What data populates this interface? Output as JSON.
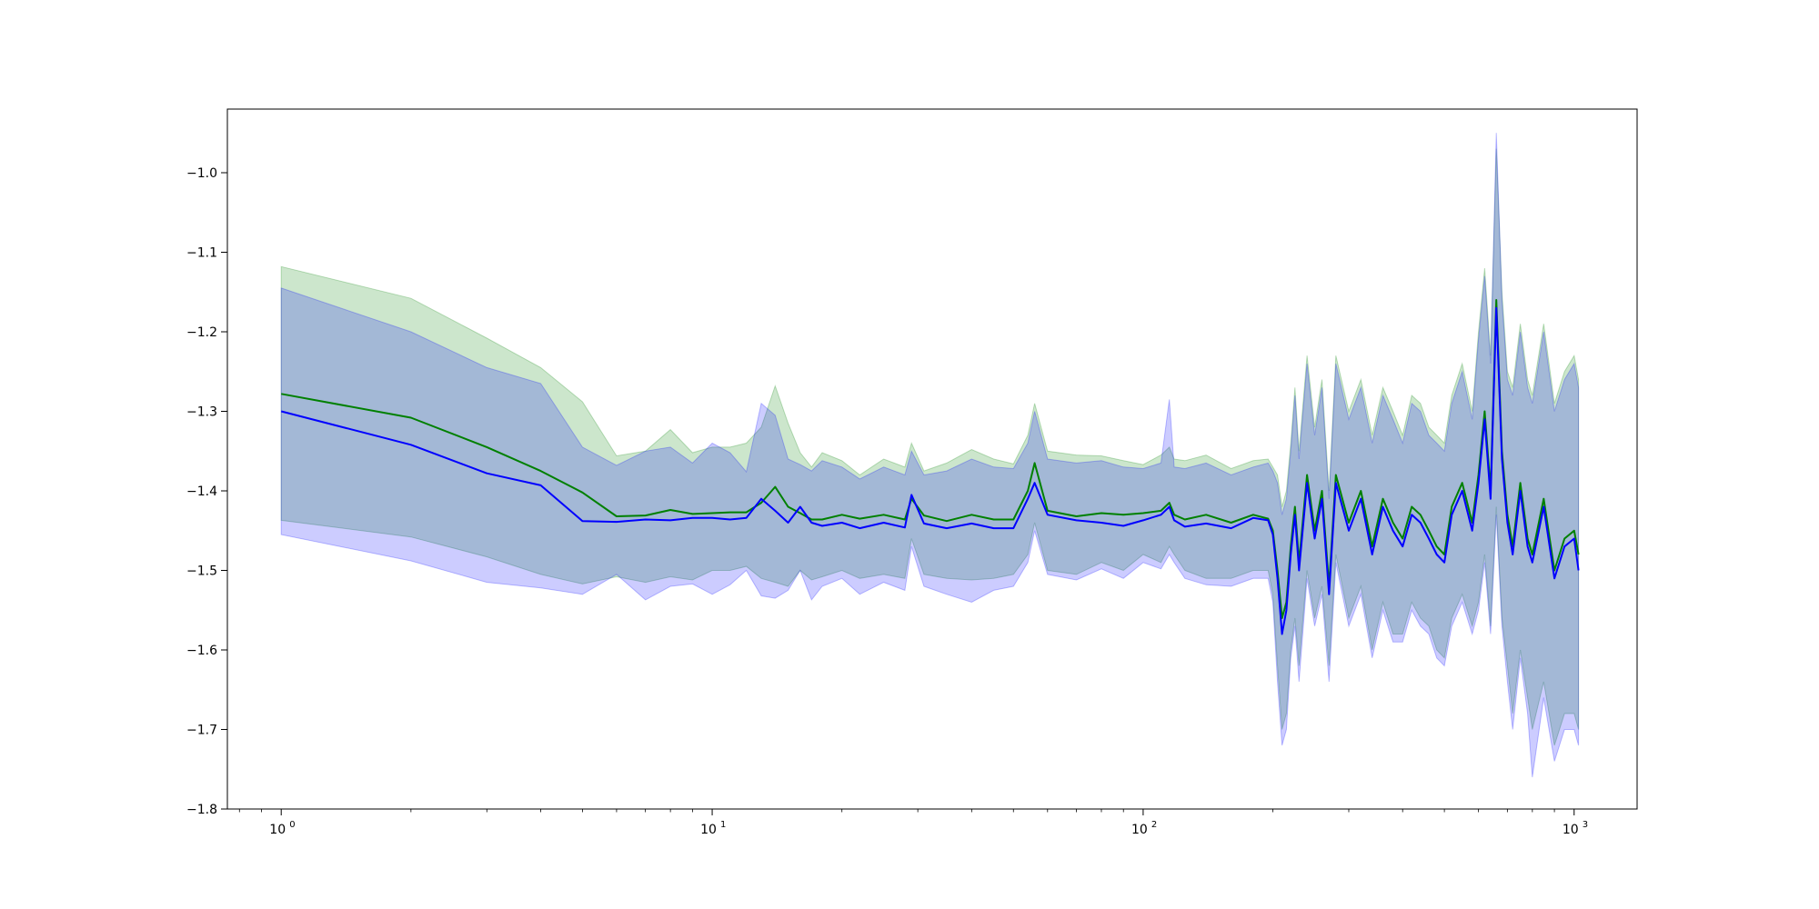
{
  "colors": {
    "green_line": "#008000",
    "blue_line": "#0000ff",
    "green_band": "#008000",
    "blue_band": "#0000ff",
    "axes": "#000000",
    "background": "#ffffff"
  },
  "chart_data": {
    "type": "line",
    "title": "",
    "xlabel": "",
    "ylabel": "",
    "xscale": "log",
    "xlim": [
      0.75,
      1400
    ],
    "ylim": [
      -1.8,
      -0.92
    ],
    "grid": false,
    "legend": null,
    "x_ticks": [
      1,
      10,
      100,
      1000
    ],
    "x_tick_labels": [
      {
        "base": "10",
        "exp": "0"
      },
      {
        "base": "10",
        "exp": "1"
      },
      {
        "base": "10",
        "exp": "2"
      },
      {
        "base": "10",
        "exp": "3"
      }
    ],
    "y_ticks": [
      -1.0,
      -1.1,
      -1.2,
      -1.3,
      -1.4,
      -1.5,
      -1.6,
      -1.7,
      -1.8
    ],
    "y_tick_labels": [
      "−1.0",
      "−1.1",
      "−1.2",
      "−1.3",
      "−1.4",
      "−1.5",
      "−1.6",
      "−1.7",
      "−1.8"
    ],
    "x": [
      1,
      2,
      3,
      4,
      5,
      6,
      7,
      8,
      9,
      10,
      11,
      12,
      13,
      14,
      15,
      16,
      17,
      18,
      20,
      22,
      25,
      28,
      29,
      31,
      35,
      40,
      45,
      50,
      54,
      56,
      60,
      70,
      80,
      90,
      100,
      110,
      115,
      118,
      125,
      140,
      160,
      180,
      195,
      200,
      205,
      210,
      215,
      220,
      225,
      230,
      240,
      250,
      260,
      270,
      280,
      300,
      320,
      340,
      360,
      380,
      400,
      420,
      440,
      460,
      480,
      500,
      520,
      550,
      580,
      600,
      620,
      640,
      660,
      680,
      700,
      720,
      750,
      780,
      800,
      850,
      900,
      950,
      1000,
      1024
    ],
    "series": [
      {
        "y": [
          -1.278,
          -1.308,
          -1.345,
          -1.375,
          -1.402,
          -1.432,
          -1.431,
          -1.424,
          -1.429,
          -1.428,
          -1.427,
          -1.427,
          -1.415,
          -1.395,
          -1.42,
          -1.428,
          -1.436,
          -1.436,
          -1.43,
          -1.435,
          -1.43,
          -1.436,
          -1.41,
          -1.431,
          -1.438,
          -1.43,
          -1.436,
          -1.436,
          -1.4,
          -1.365,
          -1.425,
          -1.432,
          -1.428,
          -1.43,
          -1.428,
          -1.425,
          -1.415,
          -1.43,
          -1.436,
          -1.43,
          -1.44,
          -1.43,
          -1.435,
          -1.45,
          -1.5,
          -1.56,
          -1.54,
          -1.47,
          -1.42,
          -1.49,
          -1.38,
          -1.45,
          -1.4,
          -1.52,
          -1.38,
          -1.44,
          -1.4,
          -1.47,
          -1.41,
          -1.44,
          -1.46,
          -1.42,
          -1.43,
          -1.45,
          -1.47,
          -1.48,
          -1.42,
          -1.39,
          -1.44,
          -1.38,
          -1.3,
          -1.4,
          -1.16,
          -1.35,
          -1.43,
          -1.47,
          -1.39,
          -1.46,
          -1.48,
          -1.41,
          -1.5,
          -1.46,
          -1.45,
          -1.48
        ],
        "lower": [
          -1.437,
          -1.458,
          -1.483,
          -1.505,
          -1.517,
          -1.508,
          -1.515,
          -1.508,
          -1.512,
          -1.5,
          -1.5,
          -1.495,
          -1.51,
          -1.515,
          -1.52,
          -1.5,
          -1.512,
          -1.508,
          -1.5,
          -1.51,
          -1.505,
          -1.51,
          -1.46,
          -1.505,
          -1.51,
          -1.512,
          -1.51,
          -1.505,
          -1.48,
          -1.44,
          -1.5,
          -1.505,
          -1.49,
          -1.5,
          -1.48,
          -1.49,
          -1.47,
          -1.48,
          -1.5,
          -1.51,
          -1.51,
          -1.5,
          -1.5,
          -1.53,
          -1.62,
          -1.7,
          -1.68,
          -1.6,
          -1.56,
          -1.62,
          -1.5,
          -1.56,
          -1.52,
          -1.62,
          -1.48,
          -1.56,
          -1.52,
          -1.6,
          -1.54,
          -1.58,
          -1.58,
          -1.54,
          -1.56,
          -1.57,
          -1.6,
          -1.61,
          -1.56,
          -1.53,
          -1.57,
          -1.54,
          -1.48,
          -1.57,
          -1.42,
          -1.56,
          -1.62,
          -1.68,
          -1.6,
          -1.66,
          -1.7,
          -1.64,
          -1.72,
          -1.68,
          -1.68,
          -1.7
        ],
        "upper": [
          -1.118,
          -1.158,
          -1.208,
          -1.245,
          -1.288,
          -1.356,
          -1.35,
          -1.323,
          -1.352,
          -1.345,
          -1.345,
          -1.34,
          -1.32,
          -1.268,
          -1.315,
          -1.352,
          -1.37,
          -1.352,
          -1.362,
          -1.38,
          -1.36,
          -1.37,
          -1.34,
          -1.375,
          -1.365,
          -1.348,
          -1.36,
          -1.366,
          -1.33,
          -1.29,
          -1.35,
          -1.355,
          -1.356,
          -1.362,
          -1.367,
          -1.355,
          -1.345,
          -1.36,
          -1.362,
          -1.355,
          -1.372,
          -1.362,
          -1.36,
          -1.37,
          -1.38,
          -1.42,
          -1.4,
          -1.34,
          -1.27,
          -1.35,
          -1.23,
          -1.32,
          -1.26,
          -1.4,
          -1.23,
          -1.3,
          -1.26,
          -1.33,
          -1.27,
          -1.3,
          -1.33,
          -1.28,
          -1.29,
          -1.32,
          -1.33,
          -1.34,
          -1.28,
          -1.24,
          -1.3,
          -1.2,
          -1.12,
          -1.23,
          -0.97,
          -1.15,
          -1.25,
          -1.27,
          -1.19,
          -1.26,
          -1.28,
          -1.19,
          -1.29,
          -1.25,
          -1.23,
          -1.26
        ]
      },
      {
        "y": [
          -1.3,
          -1.342,
          -1.378,
          -1.393,
          -1.438,
          -1.439,
          -1.436,
          -1.437,
          -1.434,
          -1.434,
          -1.436,
          -1.434,
          -1.41,
          -1.425,
          -1.44,
          -1.42,
          -1.44,
          -1.444,
          -1.44,
          -1.447,
          -1.44,
          -1.446,
          -1.405,
          -1.441,
          -1.447,
          -1.441,
          -1.447,
          -1.447,
          -1.41,
          -1.39,
          -1.43,
          -1.437,
          -1.44,
          -1.444,
          -1.437,
          -1.43,
          -1.42,
          -1.437,
          -1.445,
          -1.441,
          -1.447,
          -1.434,
          -1.437,
          -1.455,
          -1.51,
          -1.58,
          -1.55,
          -1.48,
          -1.43,
          -1.5,
          -1.39,
          -1.46,
          -1.41,
          -1.53,
          -1.39,
          -1.45,
          -1.41,
          -1.48,
          -1.42,
          -1.45,
          -1.47,
          -1.43,
          -1.44,
          -1.46,
          -1.48,
          -1.49,
          -1.43,
          -1.4,
          -1.45,
          -1.39,
          -1.31,
          -1.41,
          -1.17,
          -1.36,
          -1.44,
          -1.48,
          -1.4,
          -1.47,
          -1.49,
          -1.42,
          -1.51,
          -1.47,
          -1.46,
          -1.5
        ],
        "lower": [
          -1.455,
          -1.488,
          -1.515,
          -1.522,
          -1.53,
          -1.505,
          -1.537,
          -1.52,
          -1.517,
          -1.53,
          -1.518,
          -1.5,
          -1.532,
          -1.535,
          -1.525,
          -1.5,
          -1.537,
          -1.52,
          -1.51,
          -1.53,
          -1.515,
          -1.525,
          -1.47,
          -1.52,
          -1.53,
          -1.54,
          -1.525,
          -1.52,
          -1.49,
          -1.45,
          -1.505,
          -1.512,
          -1.498,
          -1.51,
          -1.49,
          -1.498,
          -1.48,
          -1.49,
          -1.51,
          -1.518,
          -1.52,
          -1.51,
          -1.51,
          -1.54,
          -1.64,
          -1.72,
          -1.7,
          -1.61,
          -1.57,
          -1.64,
          -1.51,
          -1.57,
          -1.53,
          -1.64,
          -1.49,
          -1.57,
          -1.53,
          -1.61,
          -1.55,
          -1.59,
          -1.59,
          -1.55,
          -1.57,
          -1.58,
          -1.61,
          -1.62,
          -1.57,
          -1.54,
          -1.58,
          -1.55,
          -1.49,
          -1.58,
          -1.43,
          -1.57,
          -1.64,
          -1.7,
          -1.61,
          -1.68,
          -1.76,
          -1.66,
          -1.74,
          -1.7,
          -1.7,
          -1.72
        ],
        "upper": [
          -1.145,
          -1.2,
          -1.245,
          -1.265,
          -1.345,
          -1.368,
          -1.35,
          -1.345,
          -1.365,
          -1.34,
          -1.352,
          -1.376,
          -1.29,
          -1.305,
          -1.36,
          -1.367,
          -1.375,
          -1.362,
          -1.37,
          -1.385,
          -1.37,
          -1.38,
          -1.35,
          -1.38,
          -1.375,
          -1.36,
          -1.37,
          -1.372,
          -1.34,
          -1.3,
          -1.36,
          -1.365,
          -1.362,
          -1.37,
          -1.372,
          -1.365,
          -1.285,
          -1.37,
          -1.372,
          -1.365,
          -1.38,
          -1.37,
          -1.365,
          -1.375,
          -1.39,
          -1.43,
          -1.41,
          -1.35,
          -1.28,
          -1.36,
          -1.24,
          -1.33,
          -1.27,
          -1.41,
          -1.24,
          -1.31,
          -1.27,
          -1.34,
          -1.28,
          -1.31,
          -1.34,
          -1.29,
          -1.3,
          -1.33,
          -1.34,
          -1.35,
          -1.29,
          -1.25,
          -1.31,
          -1.21,
          -1.13,
          -1.24,
          -0.95,
          -1.16,
          -1.26,
          -1.28,
          -1.2,
          -1.27,
          -1.29,
          -1.2,
          -1.3,
          -1.26,
          -1.24,
          -1.27
        ]
      }
    ]
  }
}
